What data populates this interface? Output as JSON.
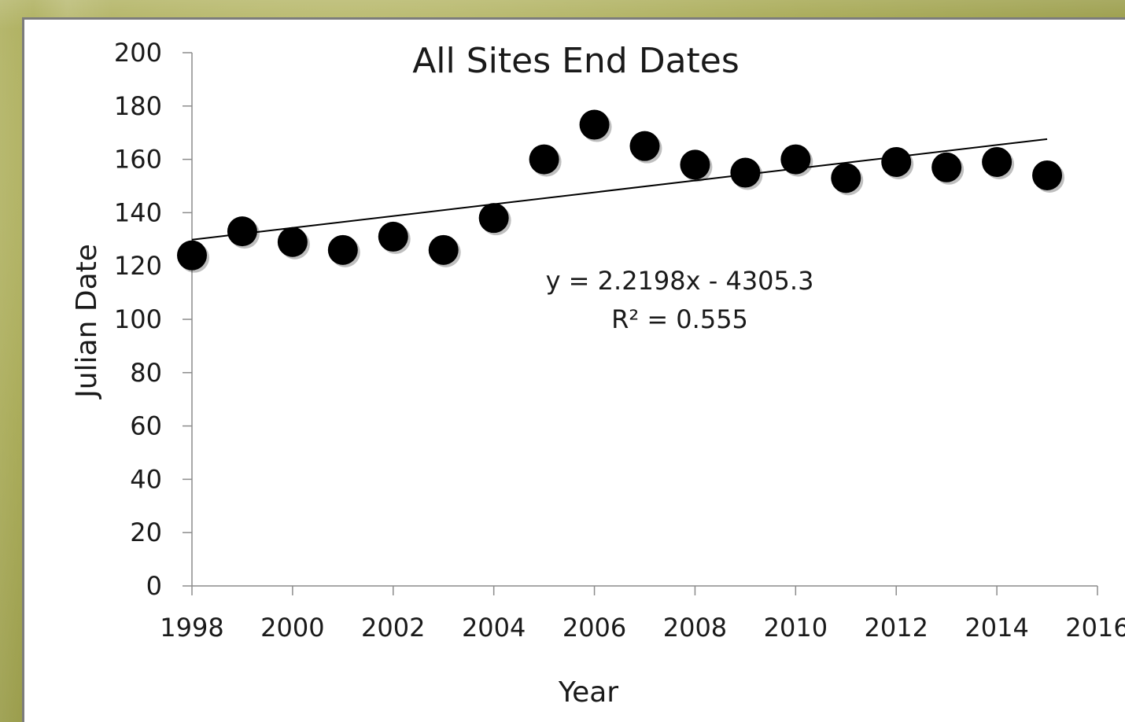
{
  "chart_data": {
    "type": "scatter",
    "title": "All Sites End Dates",
    "xlabel": "Year",
    "ylabel": "Julian Date",
    "xlim": [
      1998,
      2016
    ],
    "ylim": [
      0,
      200
    ],
    "xticks": [
      1998,
      2000,
      2002,
      2004,
      2006,
      2008,
      2010,
      2012,
      2014,
      2016
    ],
    "yticks": [
      0,
      20,
      40,
      60,
      80,
      100,
      120,
      140,
      160,
      180,
      200
    ],
    "grid": false,
    "series": [
      {
        "x": [
          1998,
          1999,
          2000,
          2001,
          2002,
          2003,
          2004,
          2005,
          2006,
          2007,
          2008,
          2009,
          2010,
          2011,
          2012,
          2013,
          2014,
          2015
        ],
        "y": [
          124,
          133,
          129,
          126,
          131,
          126,
          138,
          160,
          173,
          165,
          158,
          155,
          160,
          153,
          159,
          157,
          159,
          154
        ],
        "color": "#000000"
      }
    ],
    "trendline": {
      "type": "linear",
      "slope": 2.2198,
      "intercept": -4305.3,
      "equation_label": "y = 2.2198x - 4305.3",
      "r2_label": "R² = 0.555",
      "color": "#000000"
    }
  }
}
